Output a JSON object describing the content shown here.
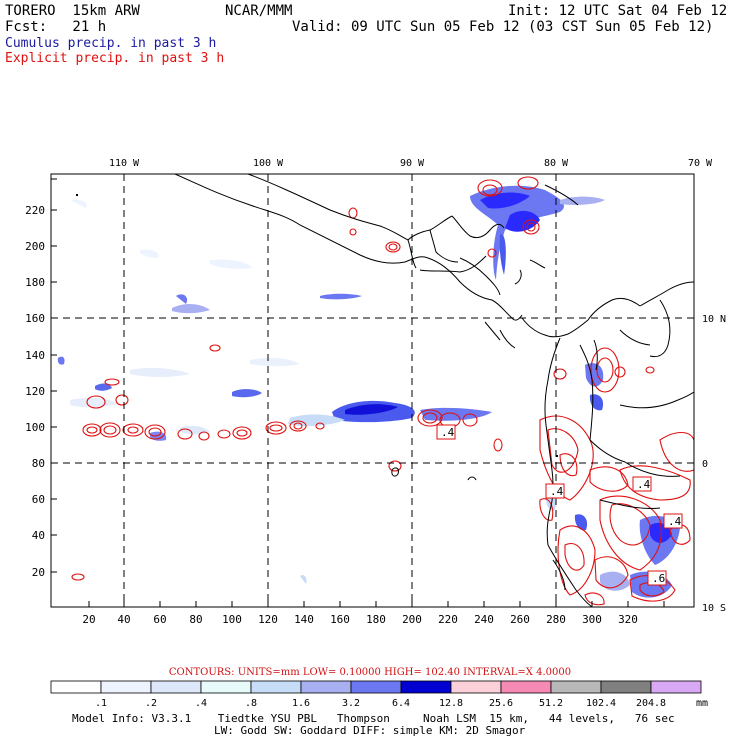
{
  "header": {
    "model": "TORERO  15km ARW",
    "org": "NCAR/MMM",
    "init": "Init: 12 UTC Sat 04 Feb 12",
    "fcst": "Fcst:   21 h",
    "valid": "Valid: 09 UTC Sun 05 Feb 12 (03 CST Sun 05 Feb 12)",
    "cumulus": "Cumulus precip. in past 3 h",
    "explicit": "Explicit precip. in past 3 h"
  },
  "axes": {
    "x_ticks": [
      "20",
      "40",
      "60",
      "80",
      "100",
      "120",
      "140",
      "160",
      "180",
      "200",
      "220",
      "240",
      "260",
      "280",
      "300",
      "320"
    ],
    "y_ticks": [
      "20",
      "40",
      "60",
      "80",
      "100",
      "120",
      "140",
      "160",
      "180",
      "200",
      "220"
    ],
    "lon_labels": [
      "110 W",
      "100 W",
      "90 W",
      "80 W",
      "70 W"
    ],
    "lat_labels": [
      "10 N",
      "0",
      "10 S"
    ]
  },
  "contour_labels": [
    ".4",
    ".4",
    ".4",
    ".4",
    ".6"
  ],
  "contour_info": "CONTOURS:  UNITS=mm  LOW= 0.10000     HIGH=  102.40     INTERVAL=X  4.0000",
  "colorbar": {
    "ticks": [
      ".1",
      ".2",
      ".4",
      ".8",
      "1.6",
      "3.2",
      "6.4",
      "12.8",
      "25.6",
      "51.2",
      "102.4",
      "204.8"
    ],
    "unit": "mm",
    "colors": [
      "#ffffff",
      "#eef4ff",
      "#dde9fb",
      "#e8fbfb",
      "#c6dcf7",
      "#a8b0f2",
      "#6b78f2",
      "#2a2aff",
      "#0000d0",
      "#fbd0d8",
      "#f58ab5",
      "#b8b8b8",
      "#808080",
      "#3a3a3a",
      "#d9a8f5"
    ]
  },
  "footer": {
    "line1": "Model Info: V3.3.1    Tiedtke YSU PBL   Thompson     Noah LSM  15 km,   44 levels,   76 sec",
    "line2": "LW: Godd SW: Goddard DIFF: simple KM: 2D Smagor"
  }
}
